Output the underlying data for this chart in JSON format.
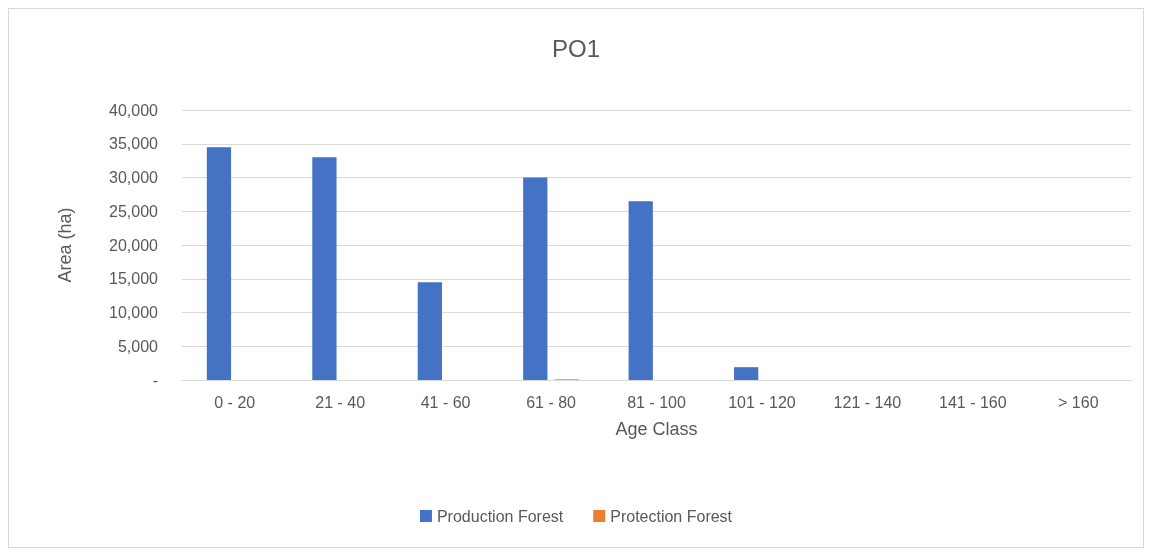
{
  "chart_data": {
    "type": "bar",
    "title": "PO1",
    "xlabel": "Age Class",
    "ylabel": "Area (ha)",
    "categories": [
      "0 - 20",
      "21 - 40",
      "41 - 60",
      "61 - 80",
      "81 - 100",
      "101 - 120",
      "121 - 140",
      "141 - 160",
      "> 160"
    ],
    "series": [
      {
        "name": "Production Forest",
        "color": "#4472c4",
        "values": [
          34500,
          33000,
          14500,
          30000,
          26500,
          1900,
          0,
          0,
          0
        ]
      },
      {
        "name": "Protection Forest",
        "color": "#ed7d31",
        "values": [
          0,
          0,
          0,
          100,
          0,
          0,
          0,
          0,
          0
        ]
      }
    ],
    "ylim": [
      0,
      40000
    ],
    "yticks": [
      {
        "value": 0,
        "label": "-"
      },
      {
        "value": 5000,
        "label": "5,000"
      },
      {
        "value": 10000,
        "label": "10,000"
      },
      {
        "value": 15000,
        "label": "15,000"
      },
      {
        "value": 20000,
        "label": "20,000"
      },
      {
        "value": 25000,
        "label": "25,000"
      },
      {
        "value": 30000,
        "label": "30,000"
      },
      {
        "value": 35000,
        "label": "35,000"
      },
      {
        "value": 40000,
        "label": "40,000"
      }
    ],
    "grid": "y",
    "legend": "bottom"
  }
}
